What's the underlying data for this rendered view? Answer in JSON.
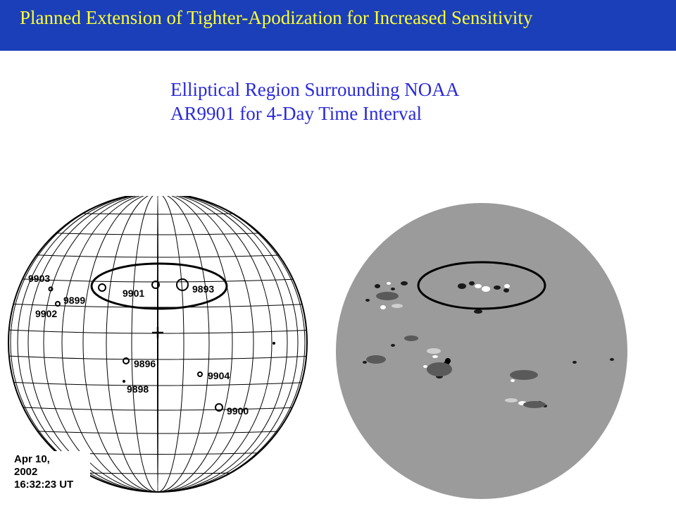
{
  "slide": {
    "title": "Planned Extension of Tighter-Apodization for Increased Sensitivity",
    "caption_line1": "Elliptical Region Surrounding NOAA",
    "caption_line2": "AR9901 for 4-Day Time Interval"
  },
  "grid_map": {
    "date_lines": [
      "Apr 10,",
      "2002",
      "16:32:23 UT"
    ],
    "regions": {
      "r9903": "9903",
      "r9902": "9902",
      "r9899": "9899",
      "r9901": "9901",
      "r9893": "9893",
      "r9896": "9896",
      "r9898": "9898",
      "r9904": "9904",
      "r9900": "9900"
    }
  },
  "colors": {
    "title_bar": "#1a3fb8",
    "title_text": "#ffff33",
    "caption_text": "#2a2ad8",
    "magnetogram_gray": "#9b9b9b"
  }
}
